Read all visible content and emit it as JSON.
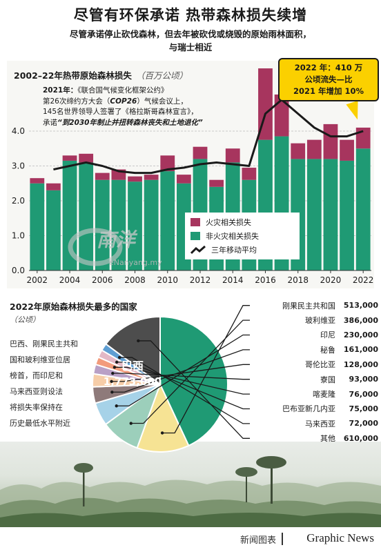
{
  "headline": "尽管有环保承诺 热带森林损失续增",
  "subhead_line1": "尽管承诺停止砍伐森林，但去年被砍伐或烧毁的原始雨林面积，",
  "subhead_line2": "与瑞士相近",
  "callout": {
    "line1": "2022 年：410 万",
    "line2": "公顷流失—比",
    "line3": "2021 年增加 10%"
  },
  "annotation": {
    "year": "2021年：",
    "line1": "《联合国气候变化框架公约》",
    "line2a": "第26次缔约方大会（",
    "line2b": "COP26",
    "line2c": "）气候会议上，",
    "line3": "145名世界领导人签署了《格拉斯哥森林宣言》，",
    "line4a": "承诺",
    "line4b": "“到2030年制止并扭转森林丧失和土地退化”"
  },
  "legend": {
    "fire": "火灾相关损失",
    "nonfire": "非火灾相关损失",
    "avg": "三年移动平均"
  },
  "colors": {
    "nonfire": "#1f9a74",
    "fire": "#a7355e",
    "avg": "#1a1a1a",
    "callout": "#fbd000"
  },
  "chart_data": [
    {
      "type": "bar",
      "title": "2002–22年热带原始森林损失",
      "unit": "（百万公顷）",
      "stacked": true,
      "x": [
        "2002",
        "2003",
        "2004",
        "2005",
        "2006",
        "2007",
        "2008",
        "2009",
        "2010",
        "2011",
        "2012",
        "2013",
        "2014",
        "2015",
        "2016",
        "2017",
        "2018",
        "2019",
        "2020",
        "2021",
        "2022"
      ],
      "xticks": [
        "2002",
        "2004",
        "2006",
        "2008",
        "2010",
        "2012",
        "2014",
        "2016",
        "2018",
        "2020",
        "2022"
      ],
      "ylim": [
        0,
        5.5
      ],
      "yticks": [
        "0.0",
        "1.0",
        "2.0",
        "3.0",
        "4.0"
      ],
      "series": [
        {
          "name": "非火灾相关损失",
          "values": [
            2.5,
            2.3,
            3.15,
            3.1,
            2.6,
            2.6,
            2.55,
            2.6,
            2.85,
            2.5,
            3.2,
            2.4,
            3.1,
            2.6,
            3.75,
            3.85,
            3.2,
            3.2,
            3.2,
            3.15,
            3.5
          ]
        },
        {
          "name": "火灾相关损失",
          "values": [
            0.15,
            0.2,
            0.15,
            0.25,
            0.2,
            0.3,
            0.15,
            0.15,
            0.45,
            0.25,
            0.35,
            0.2,
            0.4,
            0.35,
            2.05,
            1.2,
            0.45,
            0.55,
            1.0,
            0.6,
            0.6
          ]
        },
        {
          "name": "三年移动平均",
          "type": "line",
          "values": [
            null,
            2.9,
            3.0,
            3.1,
            3.0,
            2.85,
            2.8,
            2.8,
            2.9,
            2.95,
            3.05,
            3.1,
            3.05,
            3.0,
            4.5,
            4.9,
            4.5,
            4.1,
            3.85,
            3.85,
            4.0
          ]
        }
      ]
    },
    {
      "type": "pie",
      "title": "2022年原始森林损失最多的国家",
      "unit": "（公顷）",
      "labels": [
        "巴西",
        "刚果民主共和国",
        "玻利维亚",
        "印尼",
        "秘鲁",
        "哥伦比亚",
        "寮国",
        "喀麦隆",
        "巴布亚新几内亚",
        "马来西亚",
        "其他"
      ],
      "values": [
        1773000,
        513000,
        386000,
        230000,
        161000,
        128000,
        93000,
        76000,
        75000,
        72000,
        610000
      ],
      "display_values": [
        "1,773,000",
        "513,000",
        "386,000",
        "230,000",
        "161,000",
        "128,000",
        "93,000",
        "76,000",
        "75,000",
        "72,000",
        "610,000"
      ],
      "colors": [
        "#1f9a74",
        "#f6e394",
        "#9ccfbb",
        "#a6d2e8",
        "#8e7a7a",
        "#f6cda8",
        "#b9a0c6",
        "#f29b7c",
        "#e3b8c6",
        "#5e9ed3",
        "#4d4d4d"
      ]
    }
  ],
  "lower_desc": [
    "巴西、刚果民主共和",
    "国和玻利维亚位居",
    "榜首，而印尼和",
    "马来西亚则设法",
    "将损失率保持在",
    "历史最低水平附近"
  ],
  "watermark": {
    "text": "南洋",
    "url": "eNanyang.my"
  },
  "footer": {
    "cn": "新闻图表",
    "en": "Graphic News"
  }
}
